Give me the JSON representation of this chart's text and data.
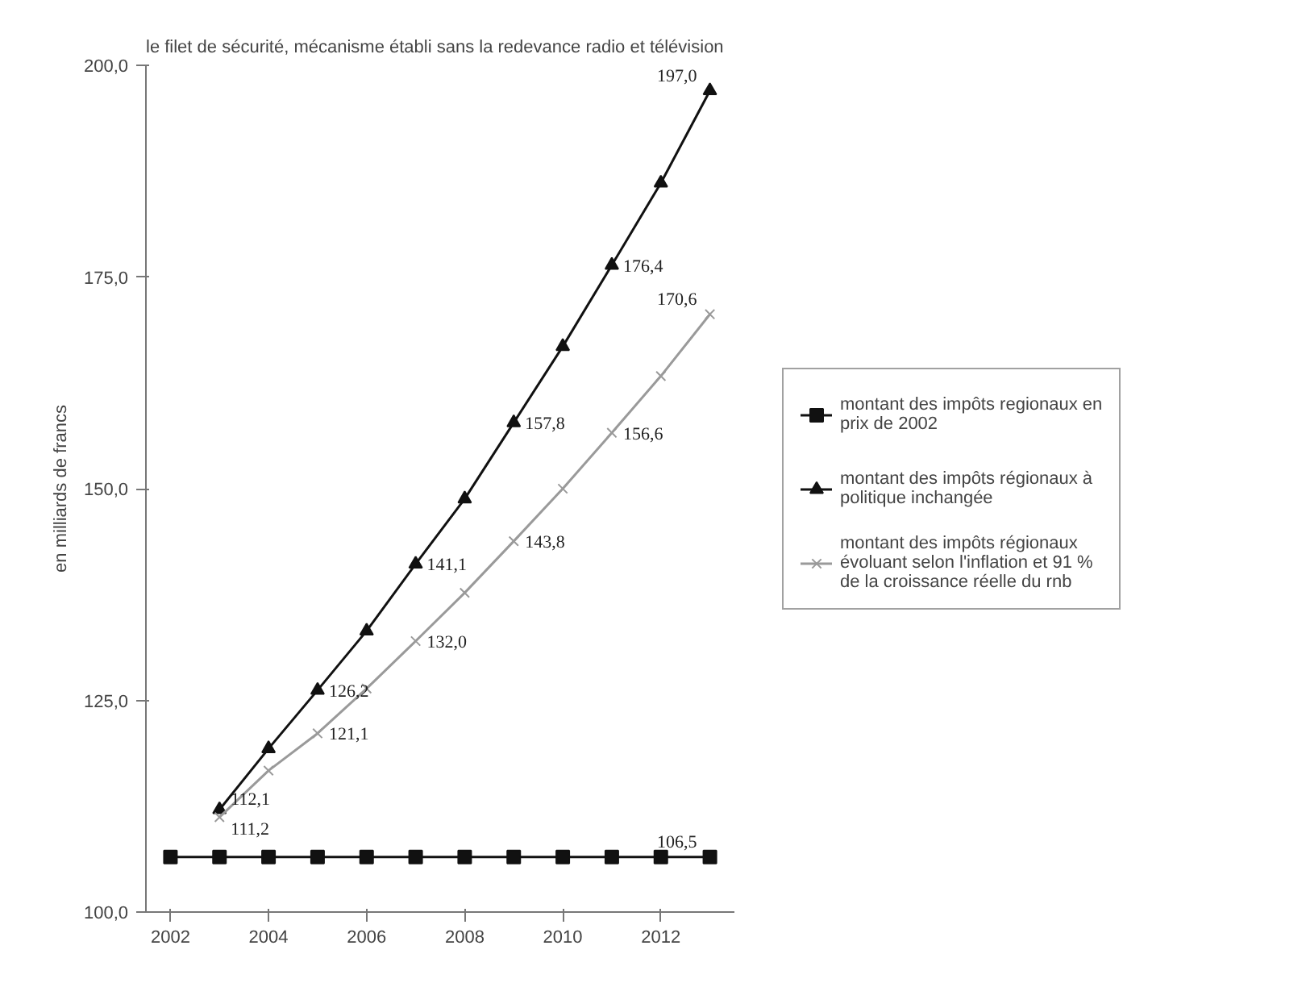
{
  "chart_data": {
    "type": "line",
    "title": "le filet de sécurité, mécanisme établi sans la redevance radio et télévision",
    "ylabel": "en milliards de francs",
    "x": [
      2002,
      2003,
      2004,
      2005,
      2006,
      2007,
      2008,
      2009,
      2010,
      2011,
      2012,
      2013
    ],
    "xlim": [
      2001.5,
      2013.5
    ],
    "xticks": [
      2002,
      2004,
      2006,
      2008,
      2010,
      2012
    ],
    "ylim": [
      100,
      200
    ],
    "yticks": [
      {
        "value": 100,
        "label": "100,0"
      },
      {
        "value": 125,
        "label": "125,0"
      },
      {
        "value": 150,
        "label": "150,0"
      },
      {
        "value": 175,
        "label": "175,0"
      },
      {
        "value": 200,
        "label": "200,0"
      }
    ],
    "series": [
      {
        "name": "montant des impôts regionaux en prix de 2002",
        "color": "#111111",
        "marker": "square",
        "values": [
          106.5,
          106.5,
          106.5,
          106.5,
          106.5,
          106.5,
          106.5,
          106.5,
          106.5,
          106.5,
          106.5,
          106.5
        ],
        "value_labels": [
          null,
          null,
          null,
          null,
          null,
          null,
          null,
          null,
          null,
          null,
          null,
          "106,5"
        ]
      },
      {
        "name": "montant des impôts régionaux à politique inchangée",
        "color": "#111111",
        "marker": "triangle",
        "values": [
          null,
          112.1,
          119.3,
          126.2,
          133.2,
          141.1,
          148.8,
          157.8,
          166.8,
          176.4,
          186.1,
          197.0
        ],
        "value_labels": [
          null,
          "112,1",
          null,
          "126,2",
          null,
          "141,1",
          null,
          "157,8",
          null,
          "176,4",
          null,
          "197,0"
        ]
      },
      {
        "name": "montant des impôts régionaux évoluant selon l'inflation et 91 % de la croissance réelle du rnb",
        "color": "#9a9a9a",
        "marker": "cross",
        "values": [
          null,
          111.2,
          116.7,
          121.1,
          126.4,
          132.0,
          137.7,
          143.8,
          150.0,
          156.6,
          163.3,
          170.6
        ],
        "value_labels": [
          null,
          "111,2",
          null,
          "121,1",
          null,
          "132,0",
          null,
          "143,8",
          null,
          "156,6",
          null,
          "170,6"
        ]
      }
    ],
    "legend": "right",
    "grid": false
  }
}
